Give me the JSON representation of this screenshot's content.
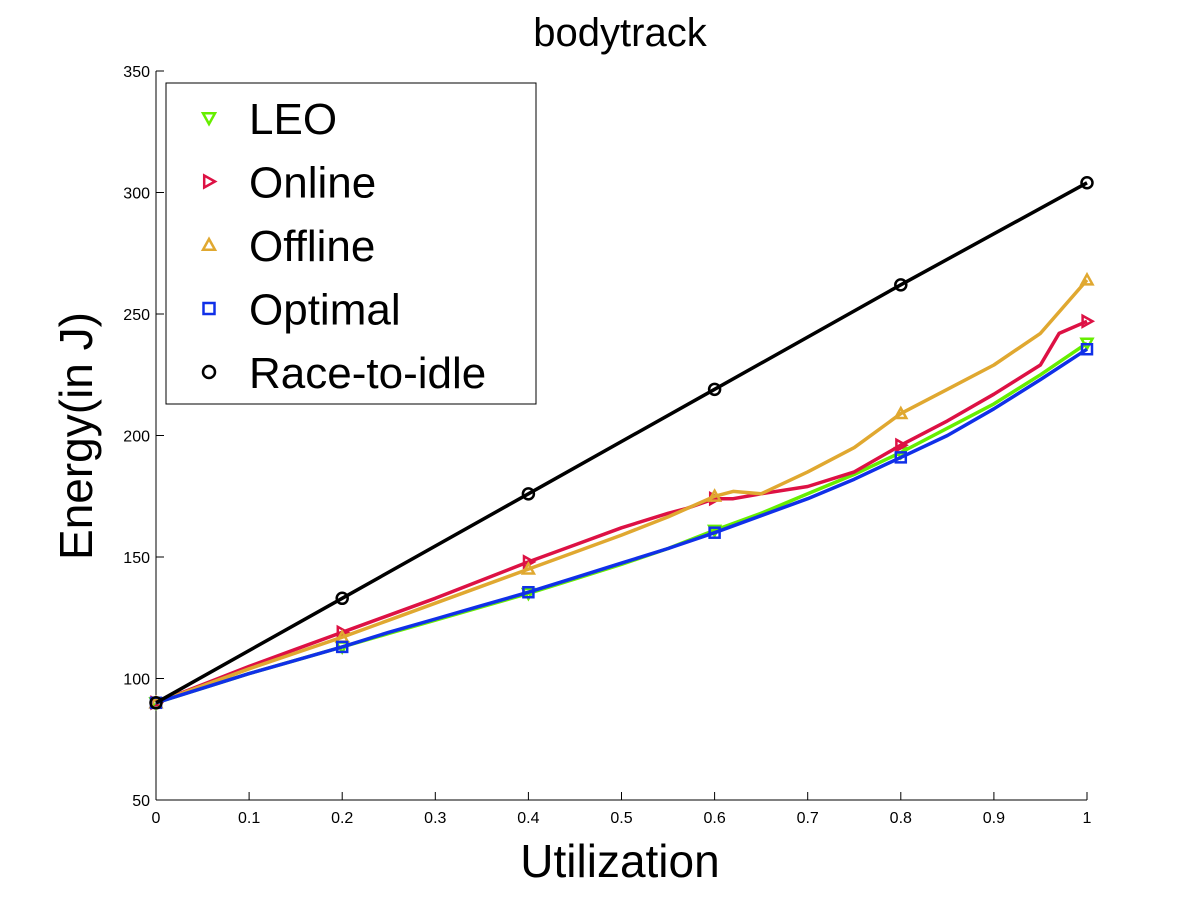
{
  "chart_data": {
    "type": "line",
    "title": "bodytrack",
    "xlabel": "Utilization",
    "ylabel": "Energy(in J)",
    "xlim": [
      0,
      1
    ],
    "ylim": [
      50,
      350
    ],
    "xticks": [
      "0",
      "0.1",
      "0.2",
      "0.3",
      "0.4",
      "0.5",
      "0.6",
      "0.7",
      "0.8",
      "0.9",
      "1"
    ],
    "yticks": [
      "50",
      "100",
      "150",
      "200",
      "250",
      "300",
      "350"
    ],
    "grid": false,
    "legend_position": "top-left",
    "series": [
      {
        "name": "LEO",
        "color": "#66ee00",
        "marker": "triangle-down",
        "x": [
          0,
          0.2,
          0.4,
          0.6,
          0.8,
          1.0
        ],
        "y": [
          90,
          113,
          135,
          161,
          193,
          238
        ],
        "line_x": [
          0,
          0.05,
          0.1,
          0.15,
          0.2,
          0.25,
          0.3,
          0.35,
          0.4,
          0.45,
          0.5,
          0.55,
          0.6,
          0.65,
          0.7,
          0.75,
          0.8,
          0.85,
          0.9,
          0.95,
          1.0
        ],
        "line_y": [
          90,
          96,
          102,
          107.5,
          113,
          118.5,
          124,
          129.5,
          135,
          141,
          147,
          153.5,
          161,
          168,
          176,
          184,
          193,
          203,
          213,
          225,
          238
        ]
      },
      {
        "name": "Online",
        "color": "#dd1144",
        "marker": "triangle-right",
        "x": [
          0,
          0.2,
          0.4,
          0.6,
          0.8,
          1.0
        ],
        "y": [
          90,
          119,
          148,
          174,
          196,
          247
        ],
        "line_x": [
          0,
          0.05,
          0.1,
          0.15,
          0.2,
          0.25,
          0.3,
          0.35,
          0.4,
          0.45,
          0.5,
          0.55,
          0.57,
          0.6,
          0.62,
          0.65,
          0.7,
          0.75,
          0.8,
          0.85,
          0.9,
          0.95,
          0.97,
          1.0
        ],
        "line_y": [
          90,
          97.5,
          105,
          112,
          119,
          126,
          133,
          140.5,
          148,
          155,
          162,
          168,
          170,
          174,
          174,
          176,
          179,
          185,
          196,
          206,
          217,
          229,
          242,
          247
        ]
      },
      {
        "name": "Offline",
        "color": "#e0a830",
        "marker": "triangle-up",
        "x": [
          0,
          0.2,
          0.4,
          0.6,
          0.8,
          1.0
        ],
        "y": [
          90,
          117,
          145,
          175,
          209,
          264
        ],
        "line_x": [
          0,
          0.05,
          0.1,
          0.15,
          0.2,
          0.25,
          0.3,
          0.35,
          0.4,
          0.45,
          0.5,
          0.55,
          0.6,
          0.62,
          0.65,
          0.7,
          0.75,
          0.8,
          0.85,
          0.9,
          0.95,
          1.0
        ],
        "line_y": [
          90,
          97,
          104,
          110.5,
          117,
          124,
          131,
          138,
          145,
          152,
          159,
          166.5,
          175,
          177,
          176,
          185,
          195,
          209,
          219,
          229,
          242,
          264
        ]
      },
      {
        "name": "Optimal",
        "color": "#1030e8",
        "marker": "square",
        "x": [
          0,
          0.2,
          0.4,
          0.6,
          0.8,
          1.0
        ],
        "y": [
          90,
          113,
          135.5,
          160,
          191,
          235.5
        ],
        "line_x": [
          0,
          0.05,
          0.1,
          0.15,
          0.2,
          0.25,
          0.3,
          0.35,
          0.4,
          0.45,
          0.5,
          0.55,
          0.6,
          0.65,
          0.7,
          0.75,
          0.8,
          0.85,
          0.9,
          0.95,
          1.0
        ],
        "line_y": [
          90,
          96,
          102,
          107.5,
          113,
          119,
          124.5,
          130,
          135.5,
          141.5,
          147.5,
          153.5,
          160,
          167,
          174,
          182,
          191,
          200,
          211,
          223,
          235.5
        ]
      },
      {
        "name": "Race-to-idle",
        "color": "#000000",
        "marker": "circle",
        "x": [
          0,
          0.2,
          0.4,
          0.6,
          0.8,
          1.0
        ],
        "y": [
          90,
          133,
          176,
          219,
          262,
          304
        ],
        "line_x": [
          0,
          0.2,
          0.4,
          0.6,
          0.8,
          1.0
        ],
        "line_y": [
          90,
          133,
          176,
          219,
          262,
          304
        ]
      }
    ]
  }
}
